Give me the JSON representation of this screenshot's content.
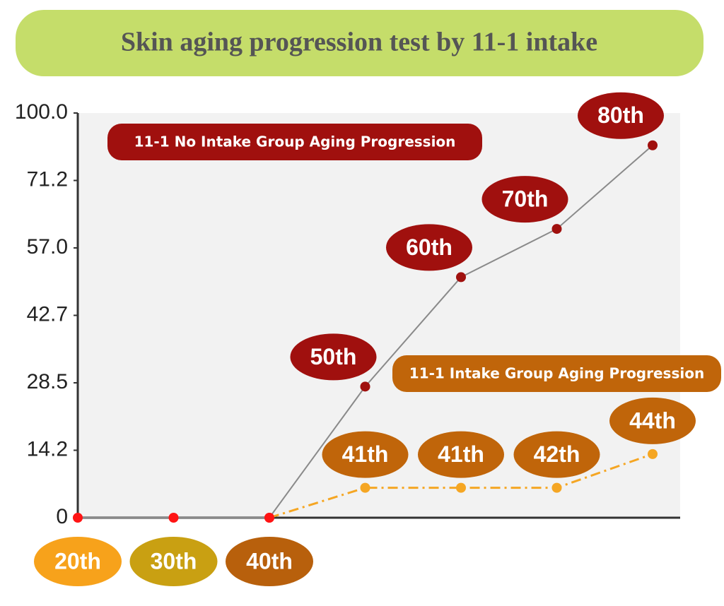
{
  "chart_data": {
    "type": "line",
    "title": "Skin aging progression test by 11-1 intake",
    "categories": [
      "20th",
      "30th",
      "40th",
      null,
      null,
      null,
      null
    ],
    "category_colors": [
      "#f7a21b",
      "#c9a012",
      "#b8600c",
      null,
      null,
      null,
      null
    ],
    "base_color": "#ff1414",
    "series": [
      {
        "name": "11-1 No Intake Group Aging Progression",
        "color": "#a0100e",
        "line_color": "#8a8a8a",
        "dash": false,
        "values": [
          0,
          0,
          0,
          27.7,
          50.8,
          61.0,
          86.2
        ],
        "labels": [
          null,
          null,
          null,
          "50th",
          "60th",
          "70th",
          "80th"
        ]
      },
      {
        "name": "11-1 Intake Group Aging Progression",
        "color": "#c0650a",
        "line_color": "#f5a623",
        "marker_color": "#f5a623",
        "dash": true,
        "values": [
          null,
          null,
          0,
          6.3,
          6.3,
          6.3,
          13.4
        ],
        "labels": [
          null,
          null,
          null,
          "41th",
          "41th",
          "42th",
          "44th"
        ]
      }
    ],
    "ylim": [
      0,
      100
    ],
    "yticks": [
      0,
      {
        "value": 14.2,
        "label": "14.2"
      },
      {
        "value": 28.5,
        "label": "28.5"
      },
      {
        "value": 42.7,
        "label": "42.7"
      },
      {
        "value": 57.0,
        "label": "57.0"
      },
      {
        "value": 71.2,
        "label": "71.2"
      },
      {
        "value": 100,
        "label": "100.0"
      }
    ]
  }
}
